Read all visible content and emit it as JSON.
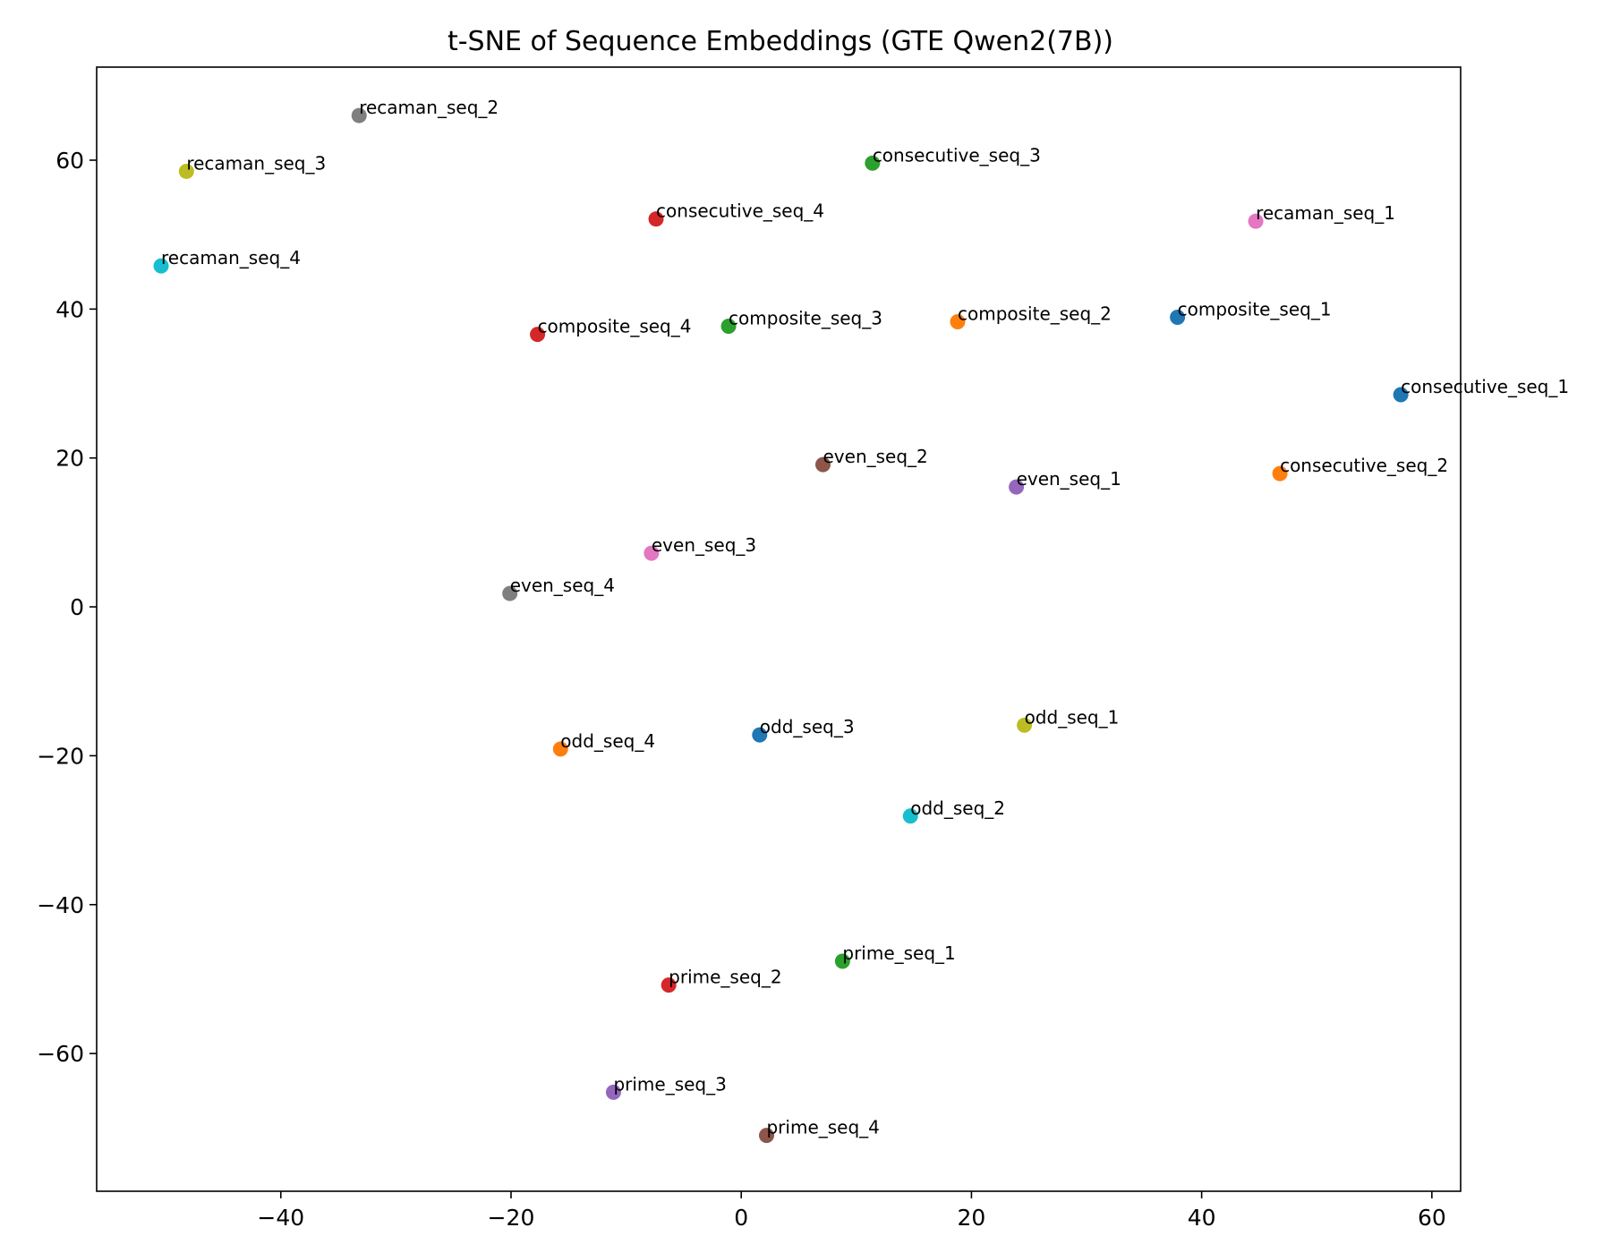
{
  "chart_data": {
    "type": "scatter",
    "title": "t-SNE of Sequence Embeddings (GTE Qwen2(7B))",
    "xlabel": "",
    "ylabel": "",
    "xlim": [
      -56,
      62.5
    ],
    "ylim": [
      -78.5,
      72.5
    ],
    "xticks": [
      -40,
      -20,
      0,
      20,
      40,
      60
    ],
    "yticks": [
      60,
      40,
      20,
      0,
      -20,
      -40,
      -60
    ],
    "xtick_labels": [
      "−40",
      "−20",
      "0",
      "20",
      "40",
      "60"
    ],
    "ytick_labels": [
      "60",
      "40",
      "20",
      "0",
      "−20",
      "−40",
      "−60"
    ],
    "grid": false,
    "points": [
      {
        "label": "recaman_seq_2",
        "x": -33.2,
        "y": 66.0,
        "color": "#7f7f7f"
      },
      {
        "label": "recaman_seq_3",
        "x": -48.2,
        "y": 58.5,
        "color": "#bcbd22"
      },
      {
        "label": "consecutive_seq_3",
        "x": 11.4,
        "y": 59.6,
        "color": "#2ca02c"
      },
      {
        "label": "consecutive_seq_4",
        "x": -7.4,
        "y": 52.1,
        "color": "#d62728"
      },
      {
        "label": "recaman_seq_1",
        "x": 44.7,
        "y": 51.8,
        "color": "#e377c2"
      },
      {
        "label": "recaman_seq_4",
        "x": -50.4,
        "y": 45.8,
        "color": "#17becf"
      },
      {
        "label": "composite_seq_1",
        "x": 37.9,
        "y": 38.9,
        "color": "#1f77b4"
      },
      {
        "label": "composite_seq_2",
        "x": 18.8,
        "y": 38.3,
        "color": "#ff7f0e"
      },
      {
        "label": "composite_seq_3",
        "x": -1.1,
        "y": 37.7,
        "color": "#2ca02c"
      },
      {
        "label": "composite_seq_4",
        "x": -17.7,
        "y": 36.6,
        "color": "#d62728"
      },
      {
        "label": "consecutive_seq_1",
        "x": 57.3,
        "y": 28.5,
        "color": "#1f77b4"
      },
      {
        "label": "even_seq_2",
        "x": 7.1,
        "y": 19.1,
        "color": "#8c564b"
      },
      {
        "label": "consecutive_seq_2",
        "x": 46.8,
        "y": 17.9,
        "color": "#ff7f0e"
      },
      {
        "label": "even_seq_1",
        "x": 23.9,
        "y": 16.1,
        "color": "#9467bd"
      },
      {
        "label": "even_seq_3",
        "x": -7.8,
        "y": 7.2,
        "color": "#e377c2"
      },
      {
        "label": "even_seq_4",
        "x": -20.1,
        "y": 1.8,
        "color": "#7f7f7f"
      },
      {
        "label": "odd_seq_1",
        "x": 24.6,
        "y": -15.9,
        "color": "#bcbd22"
      },
      {
        "label": "odd_seq_3",
        "x": 1.6,
        "y": -17.2,
        "color": "#1f77b4"
      },
      {
        "label": "odd_seq_4",
        "x": -15.7,
        "y": -19.1,
        "color": "#ff7f0e"
      },
      {
        "label": "odd_seq_2",
        "x": 14.7,
        "y": -28.1,
        "color": "#17becf"
      },
      {
        "label": "prime_seq_1",
        "x": 8.8,
        "y": -47.6,
        "color": "#2ca02c"
      },
      {
        "label": "prime_seq_2",
        "x": -6.3,
        "y": -50.8,
        "color": "#d62728"
      },
      {
        "label": "prime_seq_3",
        "x": -11.1,
        "y": -65.2,
        "color": "#9467bd"
      },
      {
        "label": "prime_seq_4",
        "x": 2.2,
        "y": -71.0,
        "color": "#8c564b"
      }
    ]
  }
}
